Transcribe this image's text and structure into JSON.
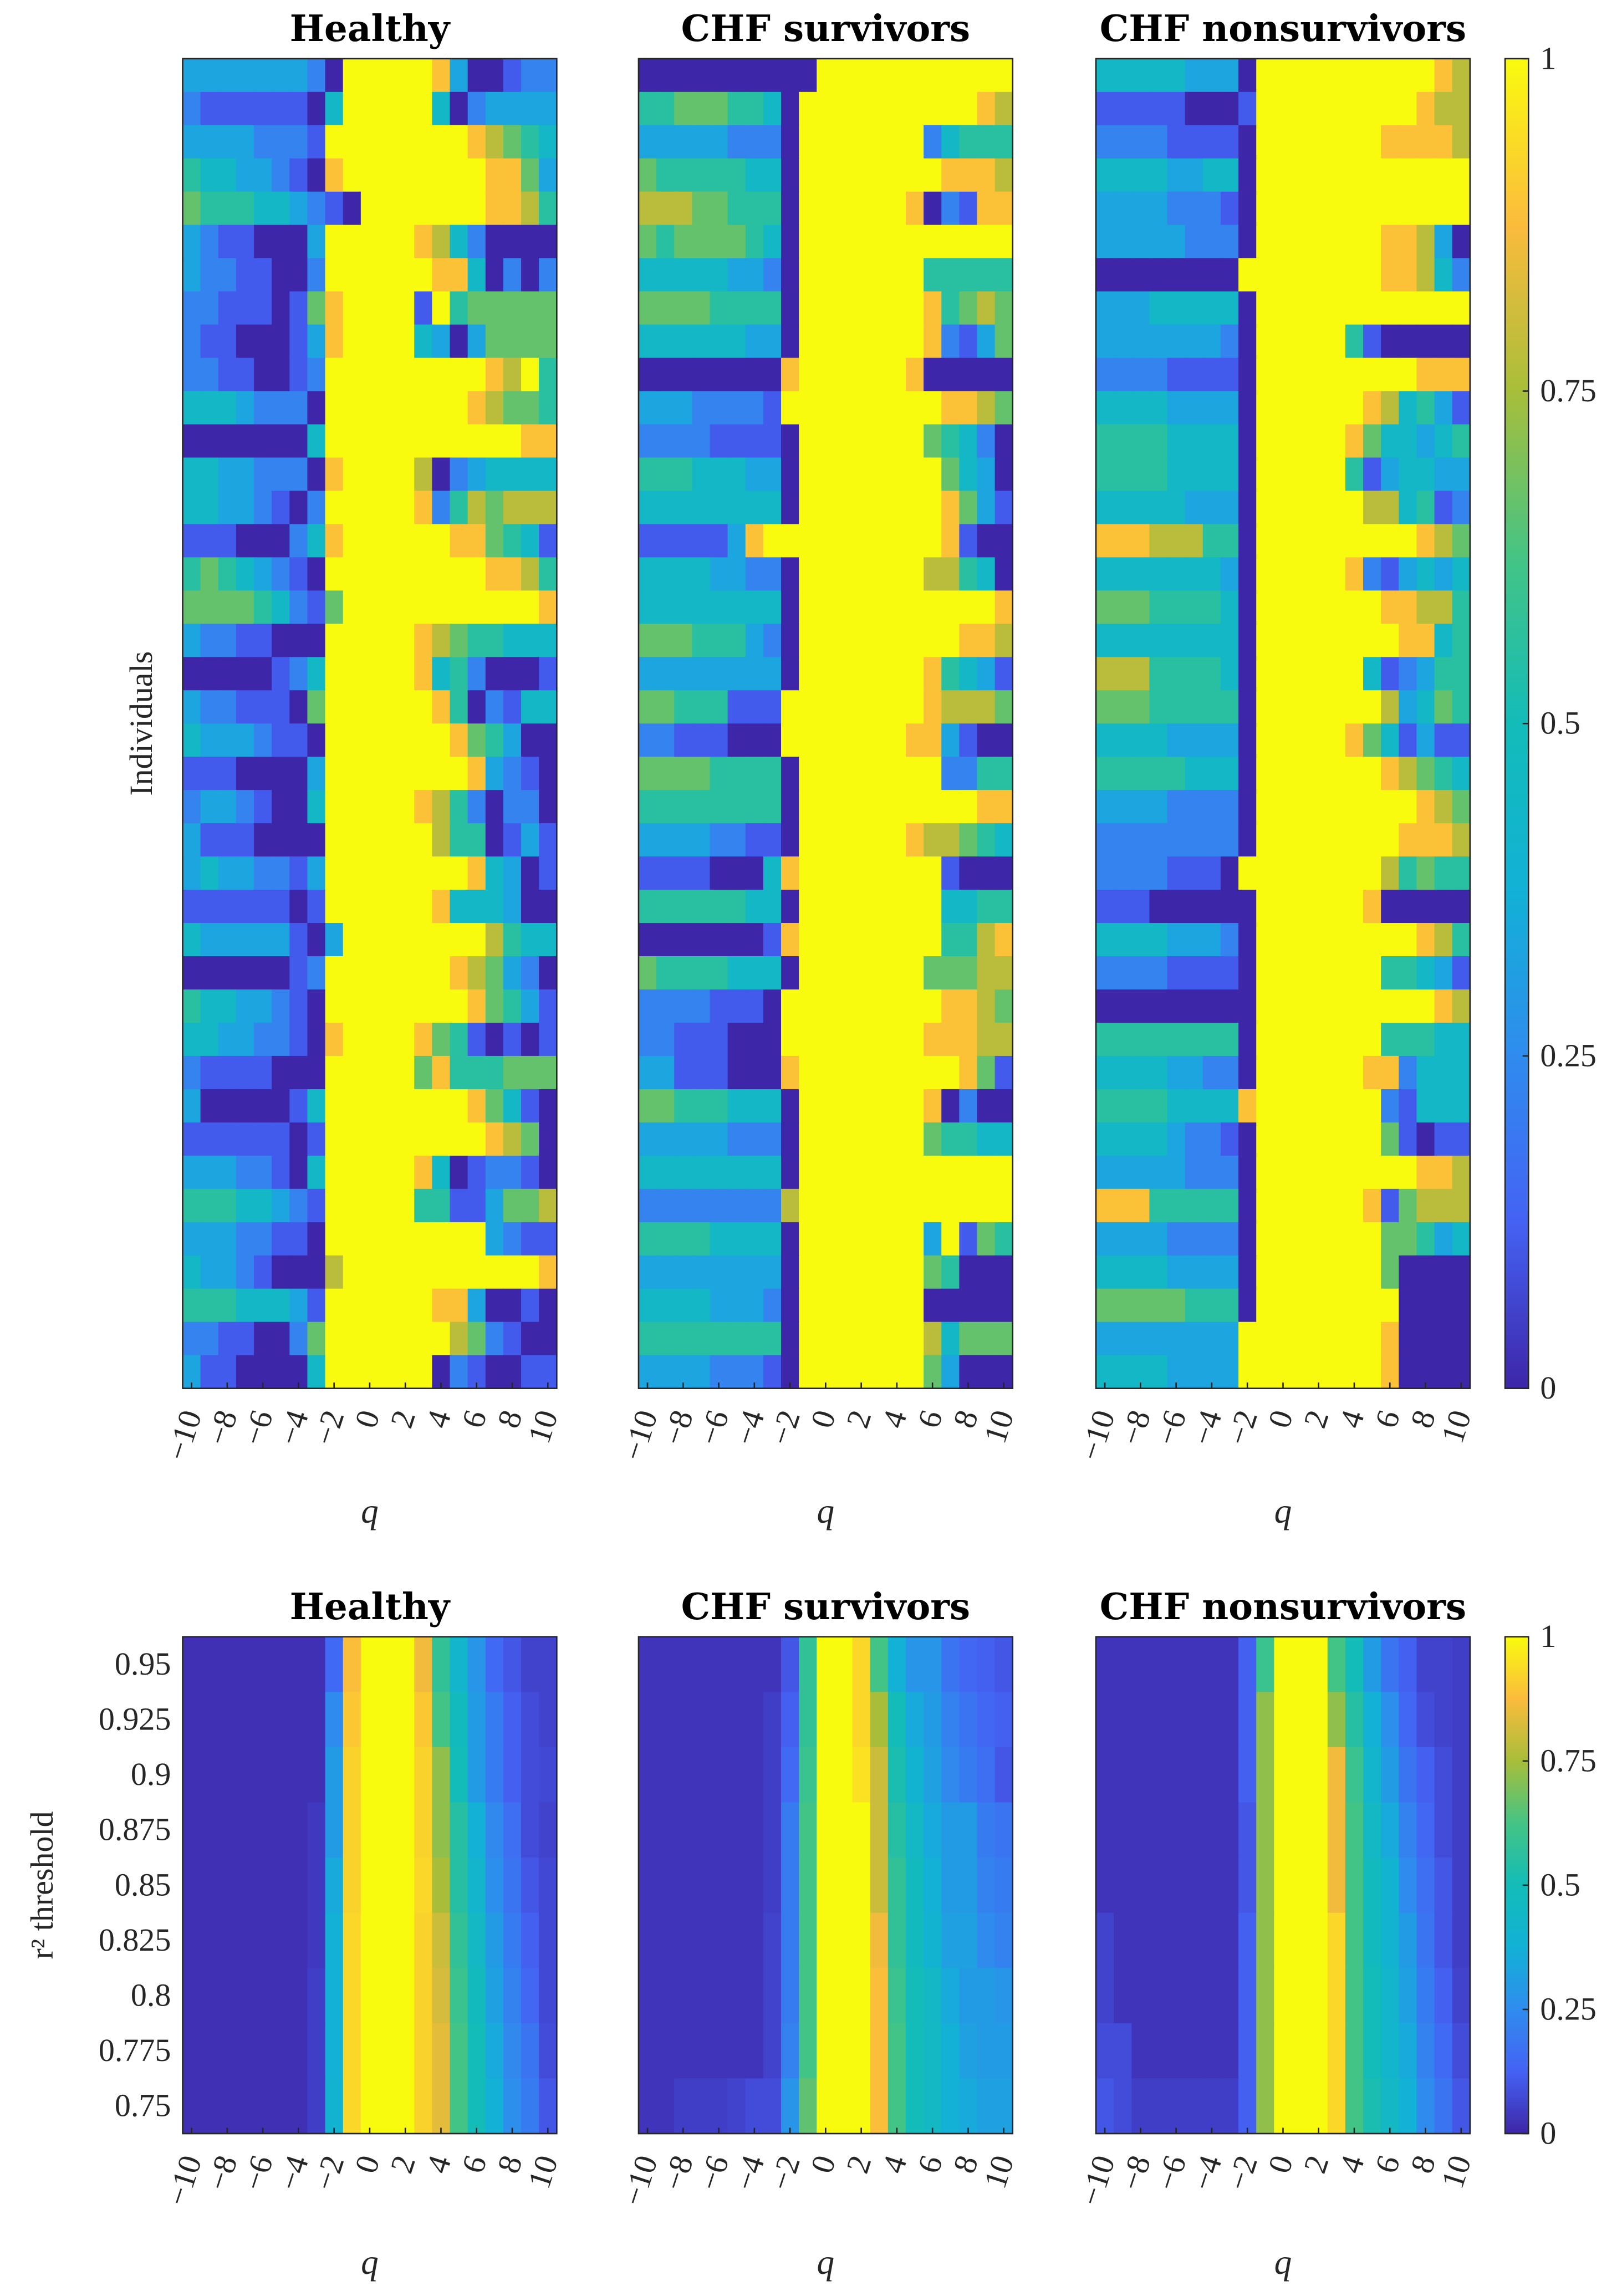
{
  "colors": {
    "cmap": [
      "#3e26a8",
      "#4462f4",
      "#2f8cee",
      "#12b1d6",
      "#13bcb8",
      "#44c485",
      "#a8be3a",
      "#fbbb3d",
      "#f9fb0e"
    ]
  },
  "top_row": {
    "ylabel": "Individuals",
    "xlabel": "q",
    "colorbar_ticks": [
      "0",
      "0.25",
      "0.5",
      "0.75",
      "1"
    ]
  },
  "bottom_row": {
    "ylabel": "r² threshold",
    "xlabel": "q",
    "colorbar_ticks": [
      "0",
      "0.25",
      "0.5",
      "0.75",
      "1"
    ],
    "yticks": [
      "0.95",
      "0.925",
      "0.9",
      "0.875",
      "0.85",
      "0.825",
      "0.8",
      "0.775",
      "0.75"
    ]
  },
  "chart_data": [
    {
      "type": "heatmap",
      "title": "Healthy",
      "xlabel": "q",
      "ylabel": "Individuals",
      "x": [
        -10,
        -9,
        -8,
        -7,
        -6,
        -5,
        -4,
        -3,
        -2,
        -1,
        0,
        1,
        2,
        3,
        4,
        5,
        6,
        7,
        8,
        9,
        10
      ],
      "xticks": [
        "−10",
        "−8",
        "−6",
        "−4",
        "−2",
        "0",
        "2",
        "4",
        "6",
        "8",
        "10"
      ],
      "clim": [
        0,
        1
      ],
      "encoding": "digit d per cell = value d/9",
      "rows": [
        "333333320999998300122",
        "211111104999994023333",
        "333322219999999987654",
        "544332108999999998863",
        "655544321099999998875",
        "321100039999987420000",
        "322110029999998840202",
        "221110168999919566666",
        "211000138999943036666",
        "221100129999999998795",
        "444322209999999987665",
        "000000049999999999988",
        "443322208999970234444",
        "443321029999982576777",
        "111000248999999886541",
        "565432109999999998875",
        "666654216999999999998",
        "322110009999987655444",
        "000001249999984520001",
        "322111069999998502144",
        "433321109999999865300",
        "111000039999999983210",
        "233210049999987520220",
        "311100009999997550131",
        "343322139999999984301",
        "111111019999998444300",
        "433333103999999997544",
        "000000129999999876320",
        "544332109999999986531",
        "443322108999986510101",
        "211110009999968555666",
        "300000149999999986410",
        "111111019999999998760",
        "333221049999984012210",
        "555443219999955113667",
        "333221109999999993211",
        "433210007999999999998",
        "555444319999998830010",
        "221100269999999762100",
        "311000049999990210011"
      ]
    },
    {
      "type": "heatmap",
      "title": "CHF survivors",
      "xlabel": "q",
      "x": [
        -10,
        -9,
        -8,
        -7,
        -6,
        -5,
        -4,
        -3,
        -2,
        -1,
        0,
        1,
        2,
        3,
        4,
        5,
        6,
        7,
        8,
        9,
        10
      ],
      "xticks": [
        "−10",
        "−8",
        "−6",
        "−4",
        "−2",
        "0",
        "2",
        "4",
        "6",
        "8",
        "10"
      ],
      "clim": [
        0,
        1
      ],
      "encoding": "digit d per cell = value d/9",
      "rows": [
        "000000000099999999999",
        "556665540999999999987",
        "333332220999999924555",
        "655555440999999998887",
        "777665550999999802188",
        "656666540999999999999",
        "444443320999999955555",
        "666655550999999985676",
        "444444330999999982136",
        "000000008999999800000",
        "333222219999999998876",
        "222211110999999965420",
        "555444330999999996430",
        "444444440999999998631",
        "111113899999999998100",
        "444433220999999977540",
        "444444440999999999998",
        "666555320999999999887",
        "333333330999999985431",
        "665551119999999987776",
        "221110009999999883100",
        "666655550999999992255",
        "555555550999999999988",
        "333322110999999877654",
        "111100048999999991000",
        "555555440999999994455",
        "000000018999999995578",
        "655554440999999966677",
        "222211109999999998876",
        "221110009999999988877",
        "331110008999999999861",
        "665554440999999980200",
        "333332220999999965544",
        "444444440999999999999",
        "222222227999999999999",
        "555544440999999939165",
        "333333330999999965000",
        "444433320999999900000",
        "555555550999999974666",
        "333322210999999963000"
      ]
    },
    {
      "type": "heatmap",
      "title": "CHF nonsurvivors",
      "xlabel": "q",
      "x": [
        -10,
        -9,
        -8,
        -7,
        -6,
        -5,
        -4,
        -3,
        -2,
        -1,
        0,
        1,
        2,
        3,
        4,
        5,
        6,
        7,
        8,
        9,
        10
      ],
      "xticks": [
        "−10",
        "−8",
        "−6",
        "−4",
        "−2",
        "0",
        "2",
        "4",
        "6",
        "8",
        "10"
      ],
      "clim": [
        0,
        1
      ],
      "encoding": "digit d per cell = value d/9",
      "rows": [
        "444443330999999999987",
        "111110001999999999877",
        "222211110999999988887",
        "444433440999999999999",
        "333322210999999999999",
        "333332220999999988730",
        "000000009999999988742",
        "333444440999999999999",
        "333333320999995100000",
        "222211110999999999888",
        "444433330999999874531",
        "555544440999998644345",
        "555544440999995134433",
        "444443330999999774512",
        "888777550999999999876",
        "444444430999998213434",
        "666555540999999988775",
        "444444440999999998845",
        "777555540999999412355",
        "666555550999999973465",
        "444433330999998641311",
        "555554440999999987654",
        "333322220999999999876",
        "222222220999999998887",
        "222211109999999975655",
        "111000000999999800000",
        "444433320999999999875",
        "222211110999999955431",
        "000000000999999999987",
        "555555550999999955544",
        "444433220999999882444",
        "555544448999999921444",
        "444432210999999961011",
        "333332220999999999887",
        "888555550999999816777",
        "333322220999999966534",
        "444433330999999960000",
        "666665550999999990000",
        "333333339999999980000",
        "444433339999999980000"
      ]
    },
    {
      "type": "heatmap",
      "title": "Healthy",
      "xlabel": "q",
      "ylabel": "r² threshold",
      "x": [
        -10,
        -9,
        -8,
        -7,
        -6,
        -5,
        -4,
        -3,
        -2,
        -1,
        0,
        1,
        2,
        3,
        4,
        5,
        6,
        7,
        8,
        9,
        10
      ],
      "y": [
        0.95,
        0.925,
        0.9,
        0.875,
        0.85,
        0.825,
        0.8,
        0.775,
        0.75
      ],
      "xticks": [
        "−10",
        "−8",
        "−6",
        "−4",
        "−2",
        "0",
        "2",
        "4",
        "6",
        "8",
        "10"
      ],
      "clim": [
        0,
        1
      ],
      "values": [
        [
          0.02,
          0.02,
          0.02,
          0.02,
          0.02,
          0.02,
          0.02,
          0.02,
          0.15,
          0.88,
          1,
          1,
          1,
          0.86,
          0.58,
          0.42,
          0.28,
          0.15,
          0.1,
          0.06,
          0.06
        ],
        [
          0.02,
          0.02,
          0.02,
          0.02,
          0.02,
          0.02,
          0.02,
          0.02,
          0.25,
          0.9,
          1,
          1,
          1,
          0.9,
          0.62,
          0.48,
          0.3,
          0.2,
          0.12,
          0.08,
          0.06
        ],
        [
          0.02,
          0.02,
          0.02,
          0.02,
          0.02,
          0.02,
          0.02,
          0.02,
          0.3,
          0.92,
          1,
          1,
          1,
          0.92,
          0.72,
          0.5,
          0.3,
          0.2,
          0.12,
          0.08,
          0.07
        ],
        [
          0.02,
          0.02,
          0.02,
          0.02,
          0.02,
          0.02,
          0.02,
          0.04,
          0.3,
          0.92,
          1,
          1,
          1,
          0.92,
          0.72,
          0.55,
          0.38,
          0.24,
          0.16,
          0.08,
          0.06
        ],
        [
          0.02,
          0.02,
          0.02,
          0.02,
          0.02,
          0.02,
          0.02,
          0.04,
          0.35,
          0.92,
          1,
          1,
          1,
          0.93,
          0.75,
          0.55,
          0.42,
          0.26,
          0.18,
          0.1,
          0.07
        ],
        [
          0.02,
          0.02,
          0.02,
          0.02,
          0.02,
          0.02,
          0.02,
          0.04,
          0.38,
          0.93,
          1,
          1,
          1,
          0.92,
          0.8,
          0.58,
          0.45,
          0.3,
          0.2,
          0.12,
          0.07
        ],
        [
          0.02,
          0.02,
          0.02,
          0.02,
          0.02,
          0.02,
          0.02,
          0.05,
          0.38,
          0.93,
          1,
          1,
          1,
          0.92,
          0.82,
          0.6,
          0.48,
          0.32,
          0.22,
          0.14,
          0.07
        ],
        [
          0.02,
          0.02,
          0.02,
          0.02,
          0.02,
          0.02,
          0.02,
          0.05,
          0.38,
          0.93,
          1,
          1,
          1,
          0.92,
          0.84,
          0.62,
          0.5,
          0.35,
          0.24,
          0.18,
          0.08
        ],
        [
          0.02,
          0.02,
          0.02,
          0.02,
          0.02,
          0.02,
          0.02,
          0.05,
          0.4,
          0.93,
          1,
          1,
          1,
          0.92,
          0.84,
          0.62,
          0.5,
          0.38,
          0.26,
          0.2,
          0.1
        ]
      ]
    },
    {
      "type": "heatmap",
      "title": "CHF survivors",
      "xlabel": "q",
      "x": [
        -10,
        -9,
        -8,
        -7,
        -6,
        -5,
        -4,
        -3,
        -2,
        -1,
        0,
        1,
        2,
        3,
        4,
        5,
        6,
        7,
        8,
        9,
        10
      ],
      "y": [
        0.95,
        0.925,
        0.9,
        0.875,
        0.85,
        0.825,
        0.8,
        0.775,
        0.75
      ],
      "xticks": [
        "−10",
        "−8",
        "−6",
        "−4",
        "−2",
        "0",
        "2",
        "4",
        "6",
        "8",
        "10"
      ],
      "clim": [
        0,
        1
      ],
      "values": [
        [
          0.03,
          0.03,
          0.03,
          0.03,
          0.03,
          0.03,
          0.03,
          0.03,
          0.1,
          0.58,
          1,
          1,
          0.93,
          0.62,
          0.38,
          0.28,
          0.28,
          0.18,
          0.14,
          0.12,
          0.1
        ],
        [
          0.03,
          0.03,
          0.03,
          0.03,
          0.03,
          0.03,
          0.03,
          0.05,
          0.12,
          0.58,
          1,
          1,
          0.93,
          0.75,
          0.5,
          0.35,
          0.3,
          0.22,
          0.18,
          0.14,
          0.12
        ],
        [
          0.03,
          0.03,
          0.03,
          0.03,
          0.03,
          0.03,
          0.03,
          0.05,
          0.15,
          0.6,
          1,
          1,
          0.95,
          0.8,
          0.52,
          0.4,
          0.32,
          0.24,
          0.2,
          0.16,
          0.1
        ],
        [
          0.03,
          0.03,
          0.03,
          0.03,
          0.03,
          0.03,
          0.03,
          0.05,
          0.2,
          0.62,
          1,
          1,
          1,
          0.8,
          0.55,
          0.45,
          0.35,
          0.3,
          0.3,
          0.2,
          0.18
        ],
        [
          0.03,
          0.03,
          0.03,
          0.03,
          0.03,
          0.03,
          0.03,
          0.05,
          0.2,
          0.62,
          1,
          1,
          1,
          0.8,
          0.58,
          0.48,
          0.38,
          0.3,
          0.3,
          0.22,
          0.2
        ],
        [
          0.03,
          0.03,
          0.03,
          0.03,
          0.03,
          0.03,
          0.03,
          0.06,
          0.2,
          0.62,
          1,
          1,
          1,
          0.86,
          0.58,
          0.48,
          0.4,
          0.32,
          0.32,
          0.25,
          0.22
        ],
        [
          0.03,
          0.03,
          0.03,
          0.03,
          0.03,
          0.03,
          0.03,
          0.06,
          0.2,
          0.62,
          1,
          1,
          1,
          0.88,
          0.6,
          0.5,
          0.45,
          0.35,
          0.3,
          0.3,
          0.28
        ],
        [
          0.03,
          0.03,
          0.03,
          0.03,
          0.03,
          0.03,
          0.03,
          0.06,
          0.22,
          0.62,
          1,
          1,
          1,
          0.88,
          0.62,
          0.5,
          0.45,
          0.38,
          0.32,
          0.3,
          0.3
        ],
        [
          0.03,
          0.03,
          0.05,
          0.05,
          0.05,
          0.06,
          0.08,
          0.08,
          0.28,
          0.66,
          1,
          1,
          1,
          0.88,
          0.62,
          0.5,
          0.45,
          0.38,
          0.35,
          0.32,
          0.32
        ]
      ]
    },
    {
      "type": "heatmap",
      "title": "CHF nonsurvivors",
      "xlabel": "q",
      "x": [
        -10,
        -9,
        -8,
        -7,
        -6,
        -5,
        -4,
        -3,
        -2,
        -1,
        0,
        1,
        2,
        3,
        4,
        5,
        6,
        7,
        8,
        9,
        10
      ],
      "y": [
        0.95,
        0.925,
        0.9,
        0.875,
        0.85,
        0.825,
        0.8,
        0.775,
        0.75
      ],
      "xticks": [
        "−10",
        "−8",
        "−6",
        "−4",
        "−2",
        "0",
        "2",
        "4",
        "6",
        "8",
        "10"
      ],
      "clim": [
        0,
        1
      ],
      "values": [
        [
          0.03,
          0.03,
          0.03,
          0.03,
          0.03,
          0.03,
          0.03,
          0.03,
          0.12,
          0.6,
          1,
          1,
          1,
          0.62,
          0.5,
          0.3,
          0.18,
          0.12,
          0.06,
          0.06,
          0.05
        ],
        [
          0.03,
          0.03,
          0.03,
          0.03,
          0.03,
          0.03,
          0.03,
          0.03,
          0.12,
          0.72,
          1,
          1,
          1,
          0.72,
          0.55,
          0.38,
          0.26,
          0.14,
          0.08,
          0.06,
          0.05
        ],
        [
          0.03,
          0.03,
          0.03,
          0.03,
          0.03,
          0.03,
          0.03,
          0.03,
          0.12,
          0.72,
          1,
          1,
          1,
          0.86,
          0.6,
          0.42,
          0.3,
          0.18,
          0.12,
          0.08,
          0.05
        ],
        [
          0.03,
          0.03,
          0.03,
          0.03,
          0.03,
          0.03,
          0.03,
          0.03,
          0.1,
          0.72,
          1,
          1,
          1,
          0.86,
          0.62,
          0.45,
          0.35,
          0.22,
          0.14,
          0.08,
          0.05
        ],
        [
          0.03,
          0.03,
          0.03,
          0.03,
          0.03,
          0.03,
          0.03,
          0.03,
          0.1,
          0.72,
          1,
          1,
          1,
          0.86,
          0.62,
          0.48,
          0.4,
          0.25,
          0.16,
          0.1,
          0.05
        ],
        [
          0.06,
          0.03,
          0.03,
          0.03,
          0.03,
          0.03,
          0.03,
          0.03,
          0.12,
          0.72,
          1,
          1,
          1,
          0.93,
          0.62,
          0.48,
          0.4,
          0.3,
          0.18,
          0.1,
          0.05
        ],
        [
          0.06,
          0.03,
          0.03,
          0.03,
          0.03,
          0.03,
          0.03,
          0.03,
          0.12,
          0.72,
          1,
          1,
          1,
          0.93,
          0.62,
          0.5,
          0.42,
          0.32,
          0.2,
          0.12,
          0.06
        ],
        [
          0.08,
          0.08,
          0.03,
          0.03,
          0.03,
          0.03,
          0.03,
          0.03,
          0.12,
          0.72,
          1,
          1,
          1,
          0.93,
          0.62,
          0.5,
          0.42,
          0.35,
          0.22,
          0.15,
          0.08
        ],
        [
          0.1,
          0.08,
          0.05,
          0.05,
          0.05,
          0.05,
          0.05,
          0.05,
          0.12,
          0.72,
          1,
          1,
          1,
          0.93,
          0.62,
          0.52,
          0.45,
          0.38,
          0.25,
          0.18,
          0.1
        ]
      ]
    }
  ]
}
